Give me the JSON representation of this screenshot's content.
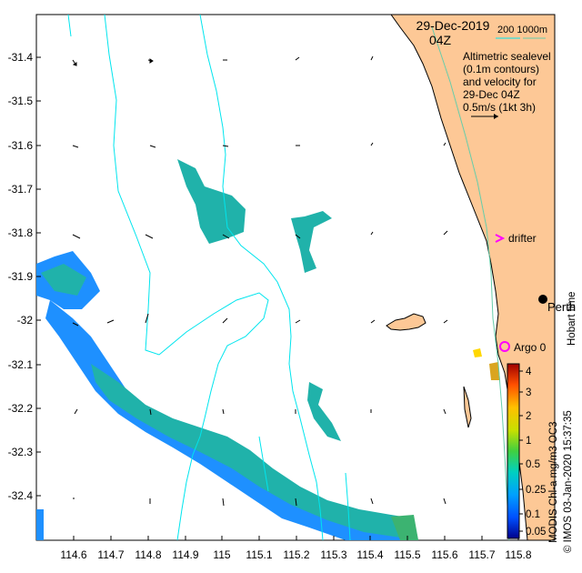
{
  "title": {
    "date": "29-Dec-2019",
    "time": "04Z",
    "depth_legend": "200  1000m"
  },
  "legend_text": [
    "Altimetric sealevel",
    "(0.1m contours)",
    "and velocity for",
    "29-Dec 04Z",
    "0.5m/s (1kt 3h)"
  ],
  "y_axis": {
    "ticks": [
      "-31.4",
      "-31.5",
      "-31.6",
      "-31.7",
      "-31.8",
      "-31.9",
      "-32",
      "-32.1",
      "-32.2",
      "-32.3",
      "-32.4"
    ]
  },
  "x_axis": {
    "ticks": [
      "114.6",
      "114.7",
      "114.8",
      "114.9",
      "115",
      "115.1",
      "115.2",
      "115.3",
      "115.4",
      "115.5",
      "115.6",
      "115.7",
      "115.8"
    ]
  },
  "labels": {
    "drifter": "drifter",
    "perth": "Perth",
    "argo": "Argo 0",
    "hobart_time": "Hobart time",
    "colorbar_title": "MODIS Chl-a mg/m3 OC3",
    "credit": "© IMOS 03-Jan-2020 15:37:35"
  },
  "colorbar": {
    "ticks": [
      "4",
      "3",
      "2",
      "1",
      "0.5",
      "0.25",
      "0.1",
      "0.05"
    ]
  },
  "colors": {
    "land": "#fdc896",
    "contour": "#00e5ee",
    "depth200": "#66cdaa",
    "chl_blue": "#1e90ff",
    "chl_teal": "#20b2aa",
    "drifter": "#ff00ff",
    "argo": "#ff00ff"
  },
  "map_data": {
    "lon_range": [
      114.5,
      115.9
    ],
    "lat_range": [
      -32.5,
      -31.3
    ],
    "markers": [
      {
        "name": "Perth",
        "lon": 115.86,
        "lat": -31.95
      },
      {
        "name": "Argo 0",
        "lon": 115.76,
        "lat": -32.09
      },
      {
        "name": "drifter",
        "lon": 115.75,
        "lat": -31.81
      }
    ]
  }
}
